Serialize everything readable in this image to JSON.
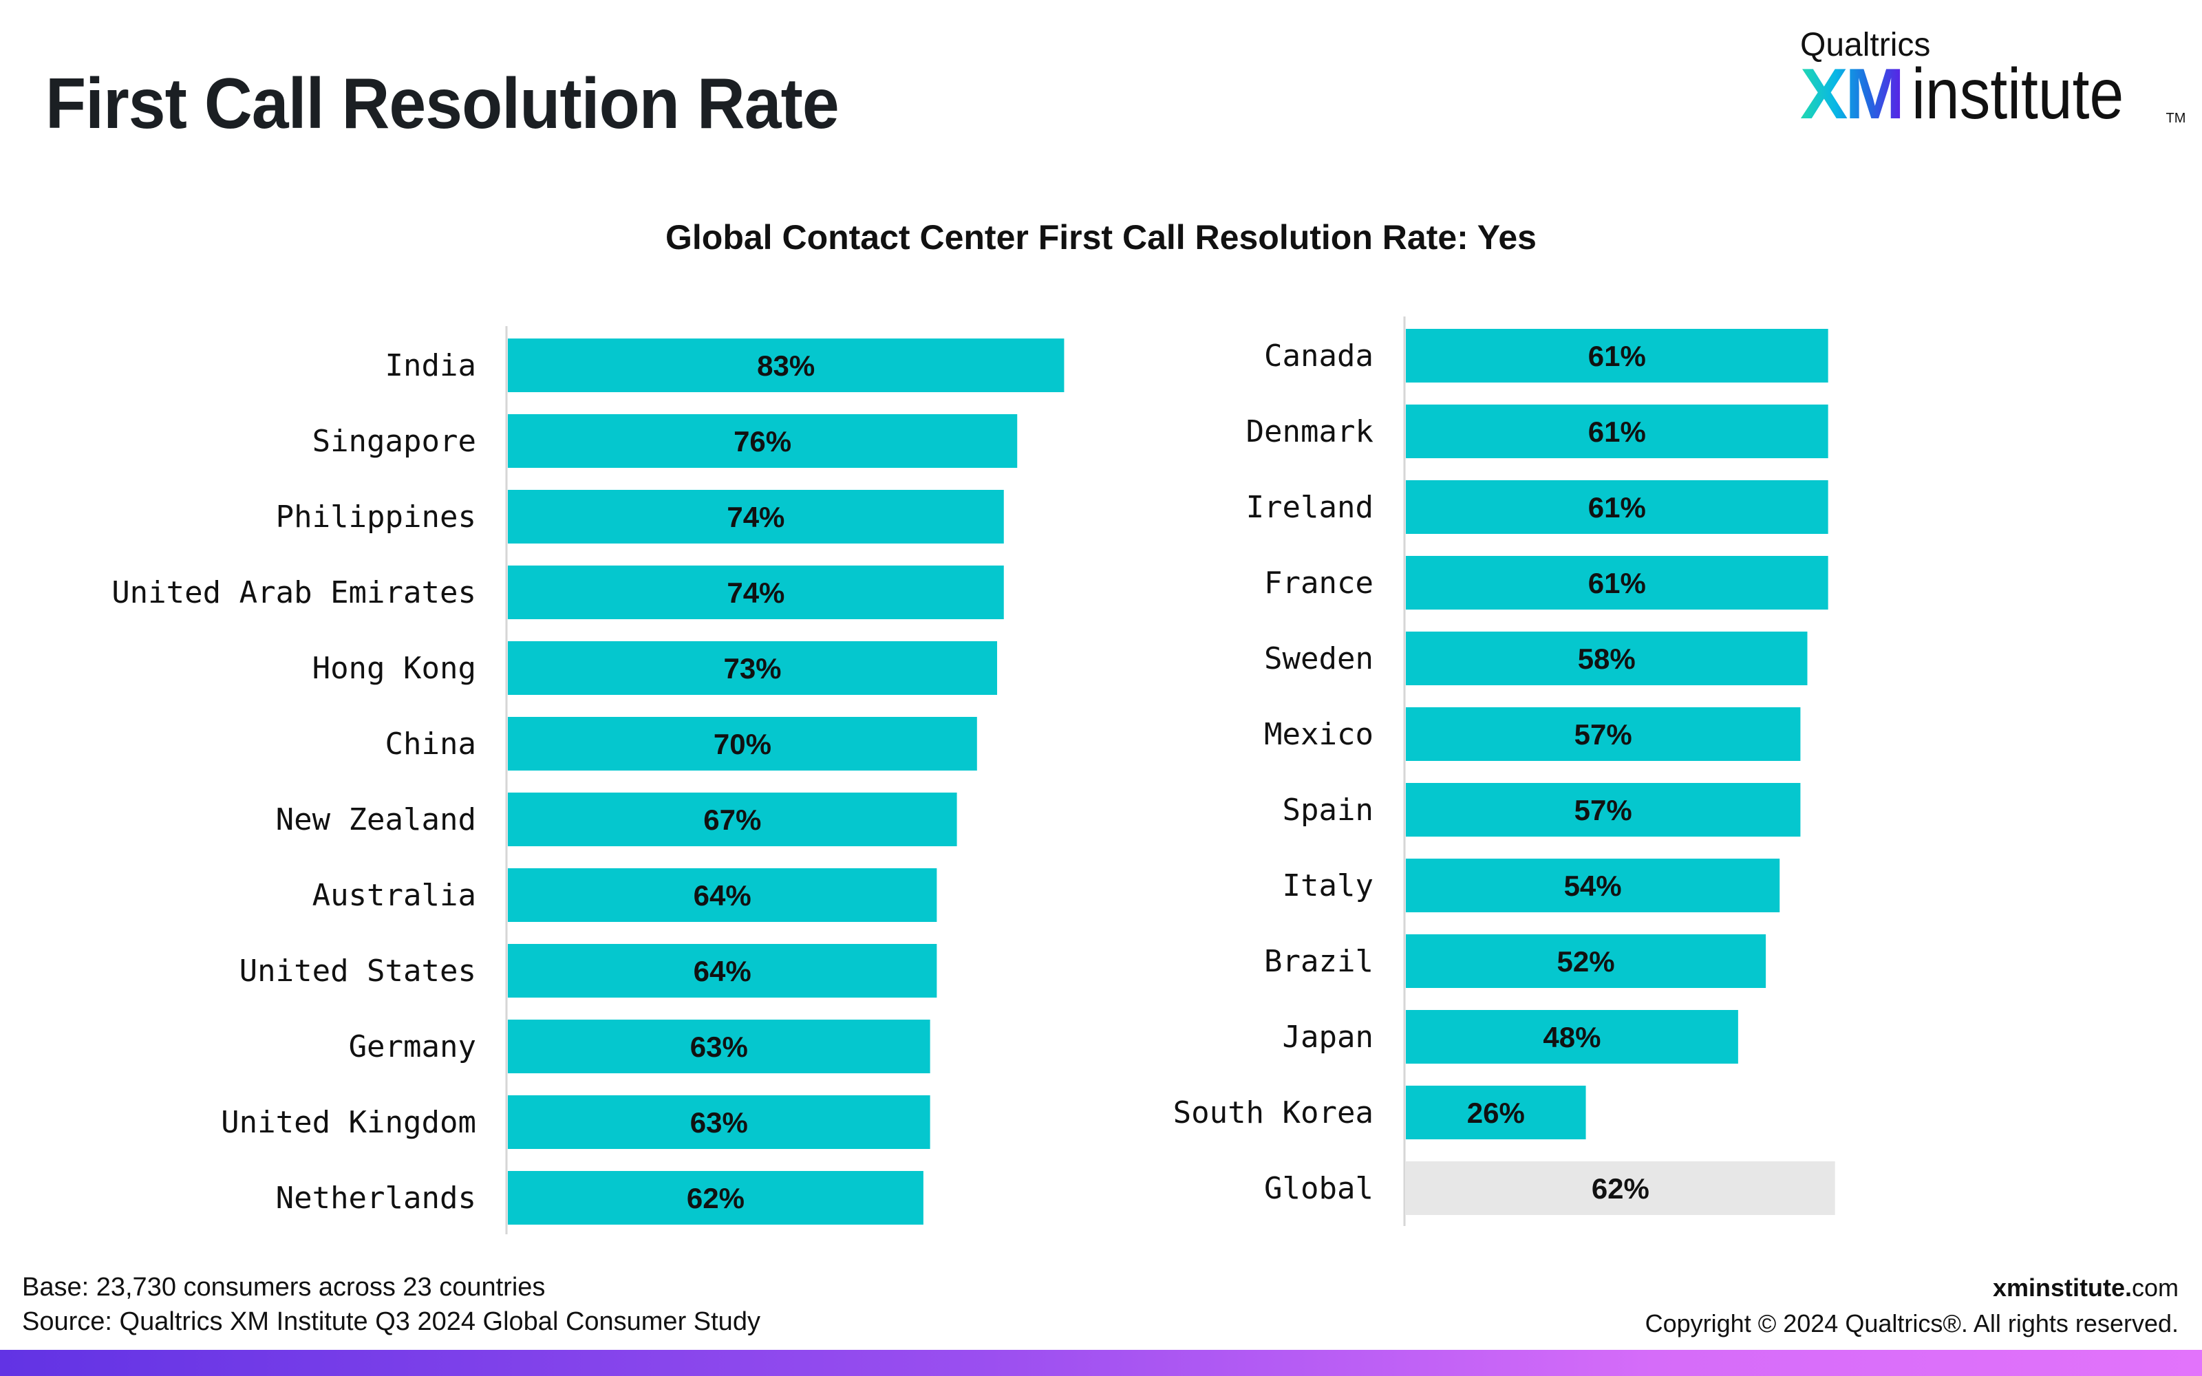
{
  "header": {
    "title": "First Call Resolution Rate",
    "logo": {
      "brand": "Qualtrics",
      "xm": "XM",
      "institute": "institute",
      "tm": "TM"
    }
  },
  "colors": {
    "bar": "#05c7ce",
    "global_bar": "#e7e7e7",
    "axis": "#d6d6d6"
  },
  "chart_data": {
    "type": "bar",
    "orientation": "horizontal",
    "title": "Global Contact Center First Call Resolution Rate: Yes",
    "xlabel": "",
    "ylabel": "",
    "xlim": [
      0,
      100
    ],
    "grid": false,
    "legend": "none",
    "panels": [
      {
        "categories": [
          "India",
          "Singapore",
          "Philippines",
          "United Arab Emirates",
          "Hong Kong",
          "China",
          "New Zealand",
          "Australia",
          "United States",
          "Germany",
          "United Kingdom",
          "Netherlands"
        ],
        "values": [
          83,
          76,
          74,
          74,
          73,
          70,
          67,
          64,
          64,
          63,
          63,
          62
        ],
        "labels": [
          "83%",
          "76%",
          "74%",
          "74%",
          "73%",
          "70%",
          "67%",
          "64%",
          "64%",
          "63%",
          "63%",
          "62%"
        ]
      },
      {
        "categories": [
          "Canada",
          "Denmark",
          "Ireland",
          "France",
          "Sweden",
          "Mexico",
          "Spain",
          "Italy",
          "Brazil",
          "Japan",
          "South Korea",
          "Global"
        ],
        "values": [
          61,
          61,
          61,
          61,
          58,
          57,
          57,
          54,
          52,
          48,
          26,
          62
        ],
        "labels": [
          "61%",
          "61%",
          "61%",
          "61%",
          "58%",
          "57%",
          "57%",
          "54%",
          "52%",
          "48%",
          "26%",
          "62%"
        ],
        "highlight": "Global"
      }
    ]
  },
  "footer": {
    "base_label": "Base:",
    "base_text": " 23,730 consumers across 23 countries",
    "source_label": "Source:",
    "source_text": " Qualtrics XM Institute Q3 2024 Global Consumer Study",
    "site_bold": "xminstitute.",
    "site_rest": "com",
    "copyright": "Copyright © 2024 Qualtrics®. All rights reserved."
  }
}
